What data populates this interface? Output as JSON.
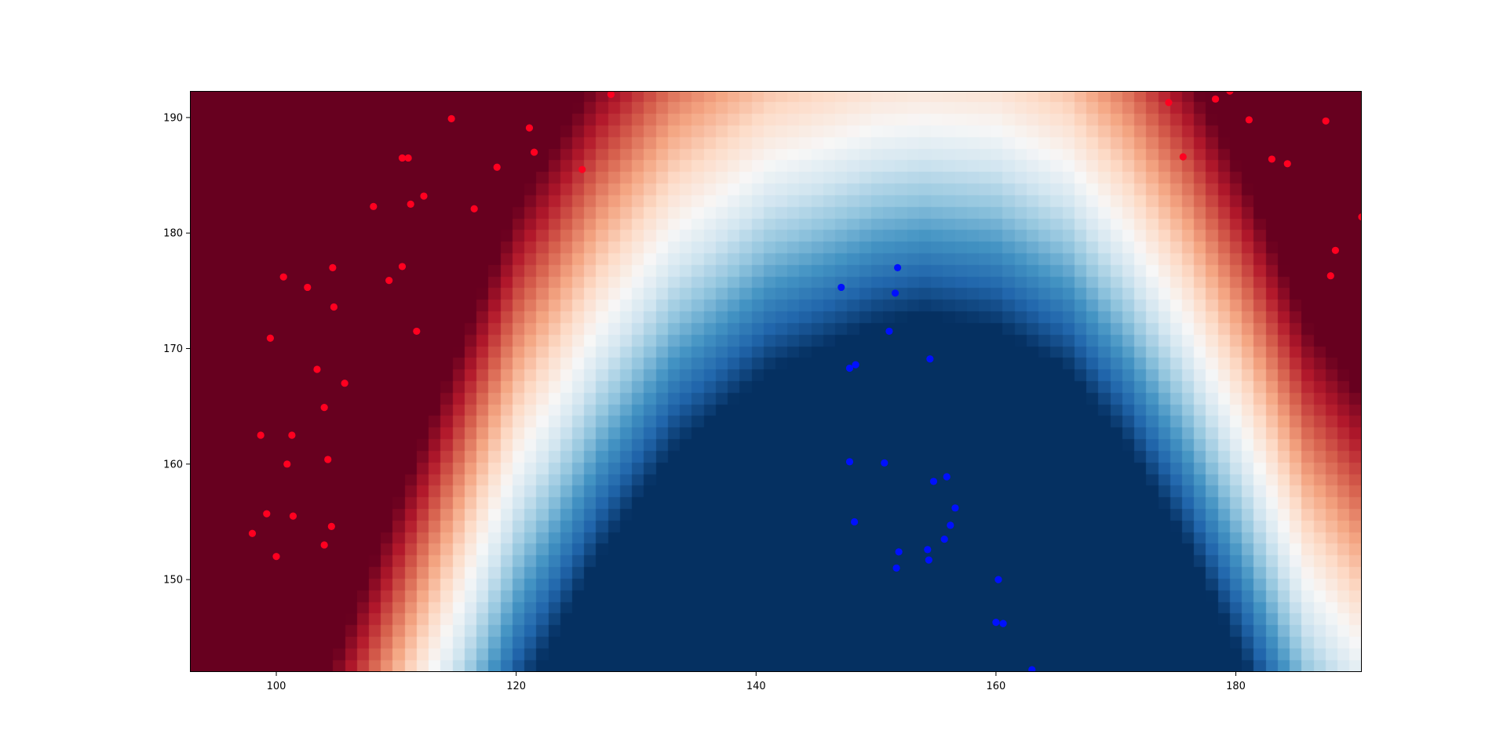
{
  "chart_data": {
    "type": "heatmap",
    "title": "",
    "xlabel": "",
    "ylabel": "",
    "xlim": [
      92.8,
      190.5
    ],
    "ylim": [
      142.0,
      192.3
    ],
    "x_ticks": [
      "100",
      "120",
      "140",
      "160",
      "180"
    ],
    "y_ticks": [
      "150",
      "160",
      "170",
      "180",
      "190"
    ],
    "grid": false,
    "legend": "none",
    "colormap": "RdBu",
    "colors": {
      "low_dark_red": "#67001f",
      "mid_white": "#f7f7f7",
      "high_dark_blue": "#053061",
      "point_red": "#ff0020",
      "point_blue": "#0010ff"
    },
    "decision_surface": {
      "description_model": "blue region = class B, red region = class A",
      "center_x": 154,
      "boundary_points": [
        [
          113,
          142
        ],
        [
          120,
          160
        ],
        [
          127,
          172
        ],
        [
          133,
          180
        ],
        [
          141,
          186
        ],
        [
          150,
          189
        ],
        [
          154,
          189.5
        ],
        [
          160,
          189
        ],
        [
          166,
          186
        ],
        [
          171,
          180
        ],
        [
          176,
          172
        ],
        [
          181,
          162
        ],
        [
          186,
          150
        ],
        [
          190.5,
          144
        ]
      ]
    },
    "series": [
      {
        "class": "red",
        "points": [
          [
            98.0,
            154.0
          ],
          [
            98.7,
            162.5
          ],
          [
            99.2,
            155.7
          ],
          [
            99.5,
            170.9
          ],
          [
            100.0,
            152.0
          ],
          [
            100.6,
            176.2
          ],
          [
            100.9,
            160.0
          ],
          [
            101.3,
            162.5
          ],
          [
            101.4,
            155.5
          ],
          [
            102.6,
            175.3
          ],
          [
            103.4,
            168.2
          ],
          [
            104.0,
            153.0
          ],
          [
            104.0,
            164.9
          ],
          [
            104.3,
            160.4
          ],
          [
            104.6,
            154.6
          ],
          [
            104.7,
            177.0
          ],
          [
            104.8,
            173.6
          ],
          [
            105.7,
            167.0
          ],
          [
            108.1,
            182.3
          ],
          [
            109.4,
            175.9
          ],
          [
            110.5,
            177.1
          ],
          [
            110.5,
            186.5
          ],
          [
            111.0,
            186.5
          ],
          [
            111.2,
            182.5
          ],
          [
            111.7,
            171.5
          ],
          [
            112.3,
            183.2
          ],
          [
            114.6,
            189.9
          ],
          [
            116.5,
            182.1
          ],
          [
            118.4,
            185.7
          ],
          [
            121.1,
            189.1
          ],
          [
            121.5,
            187.0
          ],
          [
            125.5,
            185.5
          ],
          [
            127.9,
            192.0
          ],
          [
            174.4,
            191.3
          ],
          [
            175.6,
            186.6
          ],
          [
            178.3,
            191.6
          ],
          [
            179.5,
            192.3
          ],
          [
            181.1,
            189.8
          ],
          [
            183.0,
            186.4
          ],
          [
            184.3,
            186.0
          ],
          [
            187.5,
            189.7
          ],
          [
            187.9,
            176.3
          ],
          [
            188.3,
            178.5
          ],
          [
            190.5,
            181.4
          ]
        ]
      },
      {
        "class": "blue",
        "points": [
          [
            147.1,
            175.3
          ],
          [
            147.8,
            168.3
          ],
          [
            147.8,
            160.2
          ],
          [
            148.2,
            155.0
          ],
          [
            148.3,
            168.6
          ],
          [
            150.7,
            160.1
          ],
          [
            151.1,
            171.5
          ],
          [
            151.6,
            174.8
          ],
          [
            151.7,
            151.0
          ],
          [
            151.8,
            177.0
          ],
          [
            151.9,
            152.4
          ],
          [
            154.3,
            152.6
          ],
          [
            154.4,
            151.7
          ],
          [
            154.5,
            169.1
          ],
          [
            154.8,
            158.5
          ],
          [
            155.7,
            153.5
          ],
          [
            155.9,
            158.9
          ],
          [
            156.2,
            154.7
          ],
          [
            156.6,
            156.2
          ],
          [
            160.0,
            146.3
          ],
          [
            160.2,
            150.0
          ],
          [
            160.6,
            146.2
          ],
          [
            163.0,
            142.2
          ]
        ]
      }
    ]
  }
}
